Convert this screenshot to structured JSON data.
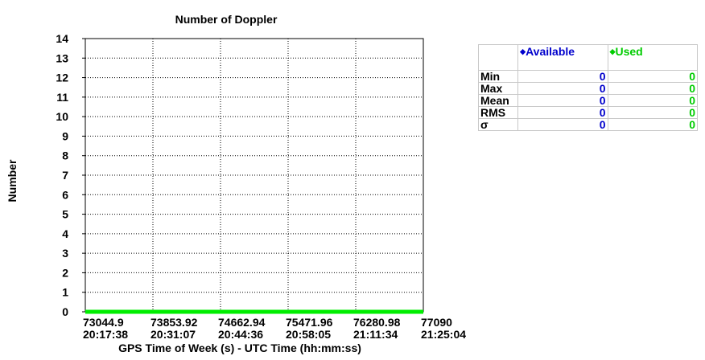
{
  "chart_data": {
    "type": "line",
    "title": "Number of Doppler",
    "ylabel": "Number",
    "xlabel": "GPS Time of Week (s) - UTC Time (hh:mm:ss)",
    "ylim": [
      0,
      14
    ],
    "yticks": [
      0,
      1,
      2,
      3,
      4,
      5,
      6,
      7,
      8,
      9,
      10,
      11,
      12,
      13,
      14
    ],
    "xlim": [
      73044.9,
      77090
    ],
    "xticks": [
      {
        "value": 73044.9,
        "gps": "73044.9",
        "utc": "20:17:38"
      },
      {
        "value": 73853.92,
        "gps": "73853.92",
        "utc": "20:31:07"
      },
      {
        "value": 74662.94,
        "gps": "74662.94",
        "utc": "20:44:36"
      },
      {
        "value": 75471.96,
        "gps": "75471.96",
        "utc": "20:58:05"
      },
      {
        "value": 76280.98,
        "gps": "76280.98",
        "utc": "21:11:34"
      },
      {
        "value": 77090,
        "gps": "77090",
        "utc": "21:25:04"
      }
    ],
    "grid": true,
    "series": [
      {
        "name": "Available",
        "color": "#0000cc",
        "x": [
          73044.9,
          77090
        ],
        "values": [
          0,
          0
        ]
      },
      {
        "name": "Used",
        "color": "#00ee00",
        "x": [
          73044.9,
          77090
        ],
        "values": [
          0,
          0
        ]
      }
    ]
  },
  "stats": {
    "headers": {
      "available": "Available",
      "used": "Used",
      "bullet": "◆"
    },
    "rows": [
      {
        "label": "Min",
        "available": "0",
        "used": "0"
      },
      {
        "label": "Max",
        "available": "0",
        "used": "0"
      },
      {
        "label": "Mean",
        "available": "0",
        "used": "0"
      },
      {
        "label": "RMS",
        "available": "0",
        "used": "0"
      },
      {
        "label": "σ",
        "available": "0",
        "used": "0"
      }
    ]
  }
}
